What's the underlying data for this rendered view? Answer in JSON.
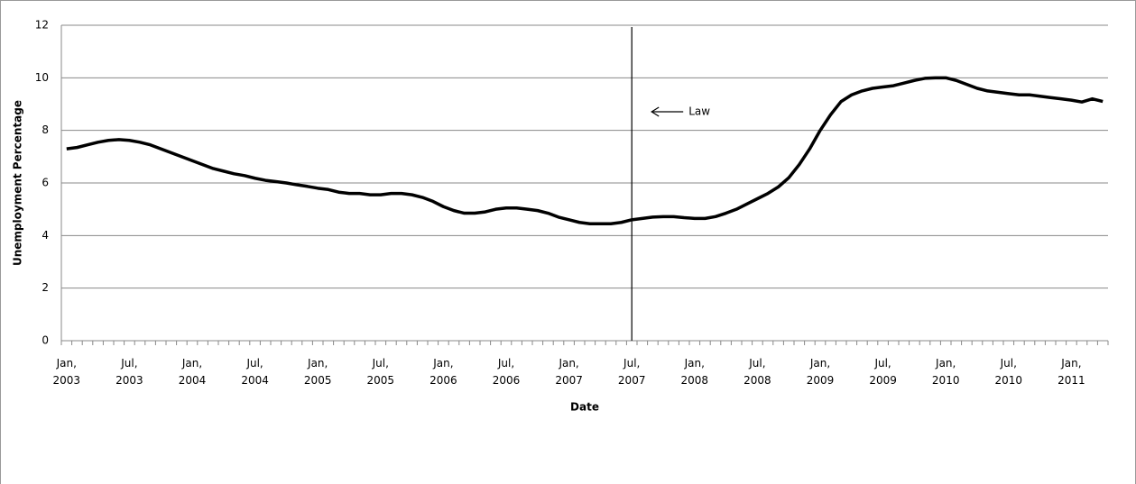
{
  "chart_data": {
    "type": "line",
    "x_label": "Date",
    "y_label": "Unemployment Percentage",
    "categories": [
      "Jan, 2003",
      null,
      null,
      null,
      null,
      null,
      "Jul, 2003",
      null,
      null,
      null,
      null,
      null,
      "Jan, 2004",
      null,
      null,
      null,
      null,
      null,
      "Jul, 2004",
      null,
      null,
      null,
      null,
      null,
      "Jan, 2005",
      null,
      null,
      null,
      null,
      null,
      "Jul, 2005",
      null,
      null,
      null,
      null,
      null,
      "Jan, 2006",
      null,
      null,
      null,
      null,
      null,
      "Jul, 2006",
      null,
      null,
      null,
      null,
      null,
      "Jan, 2007",
      null,
      null,
      null,
      null,
      null,
      "Jul, 2007",
      null,
      null,
      null,
      null,
      null,
      "Jan, 2008",
      null,
      null,
      null,
      null,
      null,
      "Jul, 2008",
      null,
      null,
      null,
      null,
      null,
      "Jan, 2009",
      null,
      null,
      null,
      null,
      null,
      "Jul, 2009",
      null,
      null,
      null,
      null,
      null,
      "Jan, 2010",
      null,
      null,
      null,
      null,
      null,
      "Jul, 2010",
      null,
      null,
      null,
      null,
      null,
      "Jan, 2011",
      null,
      null,
      null
    ],
    "series": [
      {
        "color": "#000000",
        "values": [
          7.3,
          7.35,
          7.45,
          7.55,
          7.62,
          7.65,
          7.62,
          7.55,
          7.45,
          7.3,
          7.15,
          7.0,
          6.85,
          6.7,
          6.55,
          6.45,
          6.35,
          6.28,
          6.18,
          6.1,
          6.05,
          6.0,
          5.93,
          5.87,
          5.8,
          5.75,
          5.65,
          5.6,
          5.6,
          5.55,
          5.55,
          5.6,
          5.6,
          5.55,
          5.45,
          5.3,
          5.1,
          4.95,
          4.85,
          4.85,
          4.9,
          5.0,
          5.05,
          5.05,
          5.0,
          4.95,
          4.85,
          4.7,
          4.6,
          4.5,
          4.45,
          4.45,
          4.45,
          4.5,
          4.6,
          4.65,
          4.7,
          4.72,
          4.72,
          4.68,
          4.65,
          4.65,
          4.72,
          4.85,
          5.0,
          5.2,
          5.4,
          5.6,
          5.85,
          6.2,
          6.7,
          7.3,
          8.0,
          8.6,
          9.1,
          9.35,
          9.5,
          9.6,
          9.65,
          9.7,
          9.8,
          9.9,
          9.98,
          10.0,
          10.0,
          9.9,
          9.75,
          9.6,
          9.5,
          9.45,
          9.4,
          9.35,
          9.35,
          9.3,
          9.25,
          9.2,
          9.15,
          9.08,
          9.2,
          9.1
        ]
      }
    ],
    "ylim": [
      0,
      12
    ],
    "yticks": [
      0,
      2,
      4,
      6,
      8,
      10,
      12
    ],
    "grid": true,
    "annotations": [
      {
        "text": "Law",
        "x": "Jul, 2007"
      }
    ]
  }
}
